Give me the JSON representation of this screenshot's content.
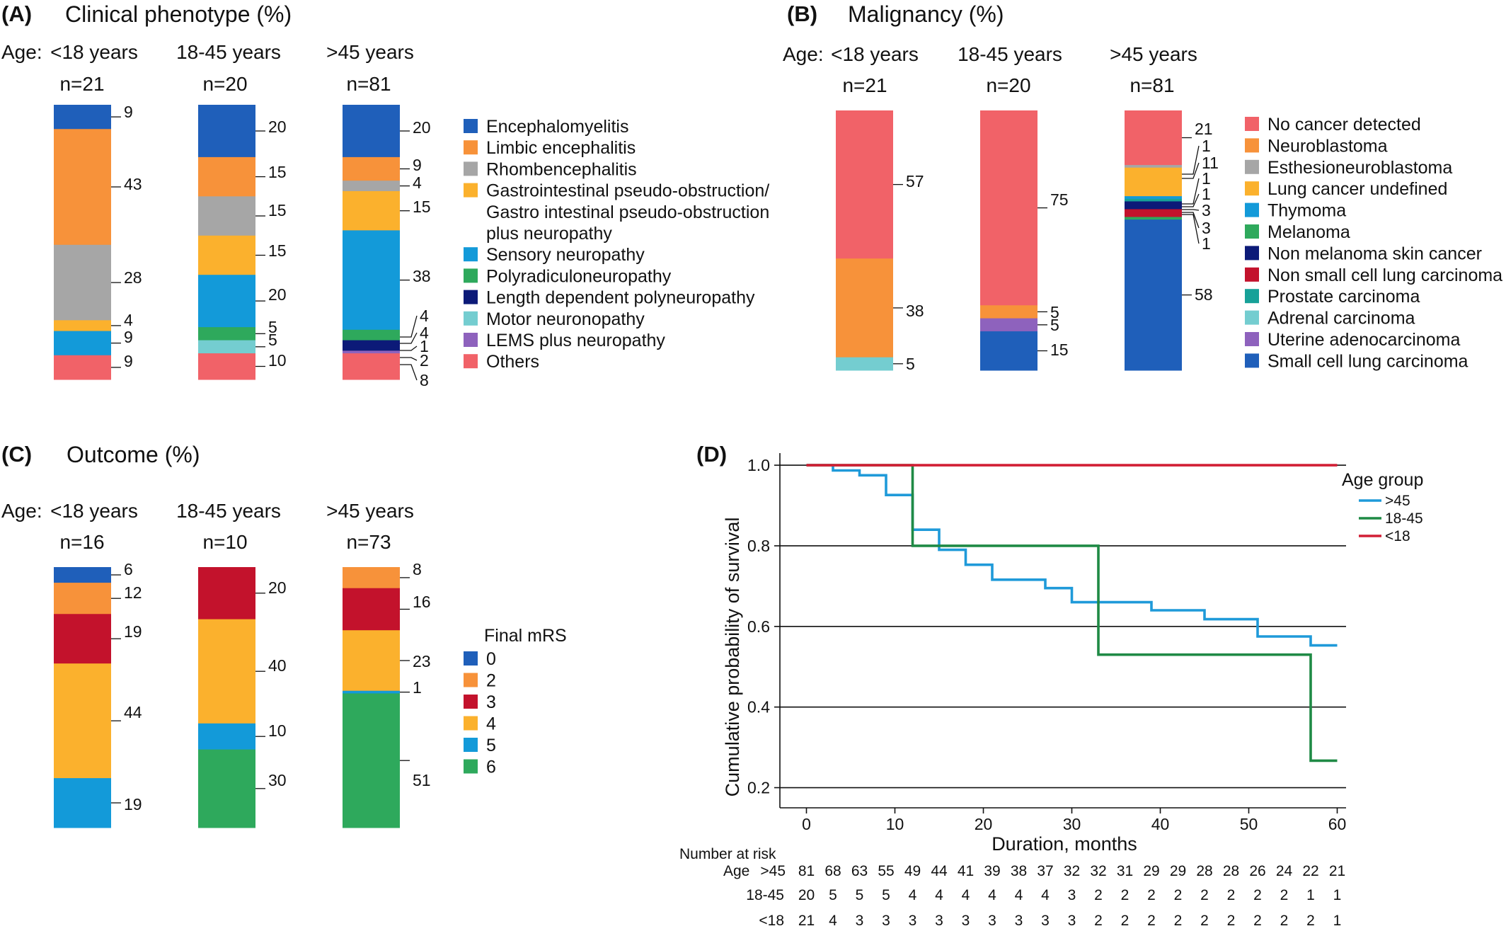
{
  "colors": {
    "blue": "#1f5fba",
    "orange": "#f7923a",
    "grey": "#a6a6a6",
    "yellow": "#fbb12d",
    "sky": "#139ad9",
    "green": "#2ea95c",
    "navy": "#0c1a78",
    "teal": "#74cdd0",
    "purple": "#8e62bd",
    "pink": "#f16268",
    "darkred": "#c3122c",
    "teal2": "#17a198",
    "km_gt45": "#1f9ad9",
    "km_18_45": "#1f8a45",
    "km_lt18": "#d21f35"
  },
  "panels": {
    "A": {
      "label": "(A)",
      "title": "Clinical phenotype (%)",
      "age_prefix": "Age:",
      "groups": [
        {
          "age": "<18 years",
          "n": "n=21",
          "segments": [
            9,
            43,
            28,
            4,
            9,
            9
          ],
          "labels": [
            "9",
            "43",
            "28",
            "4",
            "9",
            "9"
          ]
        },
        {
          "age": "18-45 years",
          "n": "n=20",
          "segments": [
            20,
            15,
            15,
            15,
            20,
            5,
            5,
            10
          ],
          "labels": [
            "20",
            "15",
            "15",
            "15",
            "20",
            "5",
            "5",
            "10"
          ]
        },
        {
          "age": ">45 years",
          "n": "n=81",
          "segments": [
            20,
            9,
            4,
            15,
            38,
            4,
            4,
            1,
            2,
            8
          ],
          "labels": [
            "20",
            "9",
            "4",
            "15",
            "38",
            "4",
            "4",
            "1",
            "2",
            "8"
          ]
        }
      ],
      "legend": [
        {
          "text": "Encephalomyelitis",
          "color": "#1f5fba"
        },
        {
          "text": "Limbic encephalitis",
          "color": "#f7923a"
        },
        {
          "text": "Rhombencephalitis",
          "color": "#a6a6a6"
        },
        {
          "text": "Gastrointestinal pseudo-obstruction/",
          "color": "#fbb12d"
        },
        {
          "text": "Gastro intestinal pseudo-obstruction",
          "color": null
        },
        {
          "text": "plus neuropathy",
          "color": null
        },
        {
          "text": "Sensory neuropathy",
          "color": "#139ad9"
        },
        {
          "text": "Polyradiculoneuropathy",
          "color": "#2ea95c"
        },
        {
          "text": "Length dependent polyneuropathy",
          "color": "#0c1a78"
        },
        {
          "text": "Motor neuronopathy",
          "color": "#74cdd0"
        },
        {
          "text": "LEMS plus neuropathy",
          "color": "#8e62bd"
        },
        {
          "text": "Others",
          "color": "#f16268"
        }
      ]
    },
    "B": {
      "label": "(B)",
      "title": "Malignancy (%)",
      "age_prefix": "Age:",
      "groups": [
        {
          "age": "<18 years",
          "n": "n=21",
          "segments": [
            57,
            38,
            5
          ],
          "labels": [
            "57",
            "38",
            "5"
          ]
        },
        {
          "age": "18-45 years",
          "n": "n=20",
          "segments": [
            75,
            5,
            5,
            15
          ],
          "labels": [
            "75",
            "5",
            "5",
            "15"
          ]
        },
        {
          "age": ">45 years",
          "n": "n=81",
          "segments": [
            21,
            1,
            11,
            1,
            1,
            3,
            3,
            1,
            58
          ],
          "labels": [
            "21",
            "1",
            "11",
            "1",
            "1",
            "3",
            "3",
            "1",
            "58"
          ]
        }
      ],
      "legend": [
        {
          "text": "No cancer detected",
          "color": "#f16268"
        },
        {
          "text": "Neuroblastoma",
          "color": "#f7923a"
        },
        {
          "text": "Esthesioneuroblastoma",
          "color": "#a6a6a6"
        },
        {
          "text": "Lung cancer undefined",
          "color": "#fbb12d"
        },
        {
          "text": "Thymoma",
          "color": "#139ad9"
        },
        {
          "text": "Melanoma",
          "color": "#2ea95c"
        },
        {
          "text": "Non melanoma skin cancer",
          "color": "#0c1a78"
        },
        {
          "text": "Non small cell lung carcinoma",
          "color": "#c3122c"
        },
        {
          "text": "Prostate carcinoma",
          "color": "#17a198"
        },
        {
          "text": "Adrenal carcinoma",
          "color": "#74cdd0"
        },
        {
          "text": "Uterine adenocarcinoma",
          "color": "#8e62bd"
        },
        {
          "text": "Small cell lung carcinoma",
          "color": "#1f5fba"
        }
      ]
    },
    "C": {
      "label": "(C)",
      "title": "Outcome (%)",
      "age_prefix": "Age:",
      "groups": [
        {
          "age": "<18 years",
          "n": "n=16",
          "segments": [
            6,
            12,
            19,
            44,
            19
          ],
          "labels": [
            "6",
            "12",
            "19",
            "44",
            "19"
          ]
        },
        {
          "age": "18-45 years",
          "n": "n=10",
          "segments": [
            20,
            40,
            10,
            30
          ],
          "labels": [
            "20",
            "40",
            "10",
            "30"
          ]
        },
        {
          "age": ">45 years",
          "n": "n=73",
          "segments": [
            8,
            16,
            23,
            1,
            51
          ],
          "labels": [
            "8",
            "16",
            "23",
            "1",
            "51"
          ]
        }
      ],
      "legend_title": "Final mRS",
      "legend": [
        {
          "text": "0",
          "color": "#1f5fba"
        },
        {
          "text": "2",
          "color": "#f7923a"
        },
        {
          "text": "3",
          "color": "#c3122c"
        },
        {
          "text": "4",
          "color": "#fbb12d"
        },
        {
          "text": "5",
          "color": "#139ad9"
        },
        {
          "text": "6",
          "color": "#2ea95c"
        }
      ]
    },
    "D": {
      "label": "(D)",
      "ylabel": "Cumulative probability of survival",
      "xlabel": "Duration, months",
      "legend_title": "Age group",
      "risk_title": "Number at risk",
      "risk_prefix": "Age",
      "risk_rows": [
        {
          "label": ">45",
          "values": [
            "81",
            "68",
            "63",
            "55",
            "49",
            "44",
            "41",
            "39",
            "38",
            "37",
            "32",
            "32",
            "31",
            "29",
            "29",
            "28",
            "28",
            "26",
            "24",
            "22",
            "21"
          ]
        },
        {
          "label": "18-45",
          "values": [
            "20",
            "5",
            "5",
            "5",
            "4",
            "4",
            "4",
            "4",
            "4",
            "4",
            "3",
            "2",
            "2",
            "2",
            "2",
            "2",
            "2",
            "2",
            "2",
            "1",
            "1"
          ]
        },
        {
          "label": "<18",
          "values": [
            "21",
            "4",
            "3",
            "3",
            "3",
            "3",
            "3",
            "3",
            "3",
            "3",
            "3",
            "2",
            "2",
            "2",
            "2",
            "2",
            "2",
            "2",
            "2",
            "2",
            "1"
          ]
        }
      ]
    }
  },
  "chart_data": [
    {
      "type": "bar",
      "title": "Clinical phenotype (%)",
      "stacked": true,
      "categories": [
        "<18 years",
        "18-45 years",
        ">45 years"
      ],
      "n": [
        "n=21",
        "n=20",
        "n=81"
      ],
      "series": [
        {
          "name": "Encephalomyelitis",
          "values": [
            9,
            20,
            20
          ]
        },
        {
          "name": "Limbic encephalitis",
          "values": [
            43,
            15,
            9
          ]
        },
        {
          "name": "Rhombencephalitis",
          "values": [
            28,
            15,
            4
          ]
        },
        {
          "name": "Gastrointestinal pseudo-obstruction/ Gastro intestinal pseudo-obstruction plus neuropathy",
          "values": [
            4,
            15,
            15
          ]
        },
        {
          "name": "Sensory neuropathy",
          "values": [
            9,
            20,
            38
          ]
        },
        {
          "name": "Polyradiculoneuropathy",
          "values": [
            0,
            5,
            4
          ]
        },
        {
          "name": "Length dependent polyneuropathy",
          "values": [
            0,
            0,
            4
          ]
        },
        {
          "name": "Motor neuronopathy",
          "values": [
            0,
            5,
            0
          ]
        },
        {
          "name": "LEMS plus neuropathy",
          "values": [
            0,
            0,
            1
          ]
        },
        {
          "name": "Others",
          "values": [
            9,
            10,
            10
          ]
        }
      ]
    },
    {
      "type": "bar",
      "title": "Malignancy (%)",
      "stacked": true,
      "categories": [
        "<18 years",
        "18-45 years",
        ">45 years"
      ],
      "n": [
        "n=21",
        "n=20",
        "n=81"
      ],
      "series": [
        {
          "name": "No cancer detected",
          "values": [
            57,
            75,
            21
          ]
        },
        {
          "name": "Neuroblastoma",
          "values": [
            38,
            5,
            0
          ]
        },
        {
          "name": "Esthesioneuroblastoma",
          "values": [
            0,
            0,
            1
          ]
        },
        {
          "name": "Lung cancer undefined",
          "values": [
            0,
            0,
            11
          ]
        },
        {
          "name": "Thymoma",
          "values": [
            0,
            0,
            1
          ]
        },
        {
          "name": "Melanoma",
          "values": [
            0,
            0,
            1
          ]
        },
        {
          "name": "Non melanoma skin cancer",
          "values": [
            0,
            0,
            3
          ]
        },
        {
          "name": "Non small cell lung carcinoma",
          "values": [
            0,
            0,
            3
          ]
        },
        {
          "name": "Prostate carcinoma",
          "values": [
            0,
            0,
            1
          ]
        },
        {
          "name": "Adrenal carcinoma",
          "values": [
            5,
            0,
            0
          ]
        },
        {
          "name": "Uterine adenocarcinoma",
          "values": [
            0,
            5,
            0
          ]
        },
        {
          "name": "Small cell lung carcinoma",
          "values": [
            0,
            15,
            58
          ]
        }
      ]
    },
    {
      "type": "bar",
      "title": "Outcome (%)",
      "stacked": true,
      "categories": [
        "<18 years",
        "18-45 years",
        ">45 years"
      ],
      "n": [
        "n=16",
        "n=10",
        "n=73"
      ],
      "legend_title": "Final mRS",
      "series": [
        {
          "name": "0",
          "values": [
            6,
            0,
            0
          ]
        },
        {
          "name": "2",
          "values": [
            12,
            0,
            8
          ]
        },
        {
          "name": "3",
          "values": [
            19,
            20,
            16
          ]
        },
        {
          "name": "4",
          "values": [
            44,
            40,
            23
          ]
        },
        {
          "name": "5",
          "values": [
            19,
            10,
            1
          ]
        },
        {
          "name": "6",
          "values": [
            0,
            30,
            51
          ]
        }
      ]
    },
    {
      "type": "line",
      "step": true,
      "xlabel": "Duration, months",
      "ylabel": "Cumulative probability of survival",
      "xlim": [
        -3,
        61
      ],
      "ylim": [
        0.15,
        1.03
      ],
      "xticks": [
        0,
        10,
        20,
        30,
        40,
        50,
        60
      ],
      "yticks": [
        0.2,
        0.4,
        0.6,
        0.8,
        1.0
      ],
      "grid": "horizontal",
      "legend_title": "Age group",
      "legend_position": "top-right",
      "series": [
        {
          "name": ">45",
          "color": "#1f9ad9",
          "x": [
            0,
            3,
            6,
            9,
            12,
            15,
            18,
            21,
            24,
            27,
            30,
            33,
            36,
            39,
            42,
            45,
            48,
            51,
            54,
            57,
            60
          ],
          "y": [
            1.0,
            0.987,
            0.975,
            0.926,
            0.84,
            0.79,
            0.753,
            0.716,
            0.716,
            0.695,
            0.66,
            0.66,
            0.66,
            0.64,
            0.64,
            0.618,
            0.618,
            0.575,
            0.575,
            0.553,
            0.553
          ]
        },
        {
          "name": "18-45",
          "color": "#1f8a45",
          "x": [
            0,
            12,
            33,
            57,
            60
          ],
          "y": [
            1.0,
            0.8,
            0.53,
            0.267,
            0.267
          ]
        },
        {
          "name": "<18",
          "color": "#d21f35",
          "x": [
            12,
            60
          ],
          "y": [
            1.0,
            1.0
          ]
        }
      ],
      "number_at_risk": {
        "x": [
          0,
          3,
          6,
          9,
          12,
          15,
          18,
          21,
          24,
          27,
          30,
          33,
          36,
          39,
          42,
          45,
          48,
          51,
          54,
          57,
          60
        ],
        ">45": [
          81,
          68,
          63,
          55,
          49,
          44,
          41,
          39,
          38,
          37,
          32,
          32,
          31,
          29,
          29,
          28,
          28,
          26,
          24,
          22,
          21
        ],
        "18-45": [
          20,
          5,
          5,
          5,
          4,
          4,
          4,
          4,
          4,
          4,
          3,
          2,
          2,
          2,
          2,
          2,
          2,
          2,
          2,
          1,
          1
        ],
        "<18": [
          21,
          4,
          3,
          3,
          3,
          3,
          3,
          3,
          3,
          3,
          3,
          2,
          2,
          2,
          2,
          2,
          2,
          2,
          2,
          2,
          1
        ]
      }
    }
  ]
}
